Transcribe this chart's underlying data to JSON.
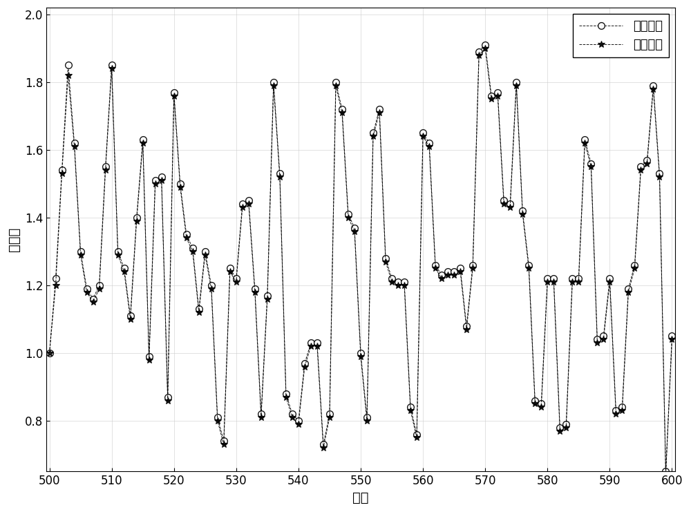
{
  "x_label": "比特",
  "y_label": "信号値",
  "ylim": [
    0.65,
    2.02
  ],
  "xlim": [
    499.5,
    600.5
  ],
  "yticks": [
    0.8,
    1.0,
    1.2,
    1.4,
    1.6,
    1.8,
    2.0
  ],
  "xticks": [
    500,
    510,
    520,
    530,
    540,
    550,
    560,
    570,
    580,
    590,
    600
  ],
  "legend_labels": [
    "真实信号",
    "跟踪信号"
  ],
  "background_color": "#ffffff",
  "figsize": [
    10.0,
    7.41
  ],
  "dpi": 100,
  "true_signal": [
    1.0,
    1.22,
    1.54,
    1.85,
    1.62,
    1.3,
    1.19,
    1.16,
    1.2,
    1.55,
    1.85,
    1.3,
    1.25,
    1.11,
    1.4,
    1.63,
    0.99,
    1.51,
    1.52,
    0.87,
    1.77,
    1.5,
    1.35,
    1.31,
    1.13,
    1.3,
    1.2,
    0.81,
    0.74,
    1.25,
    1.22,
    1.44,
    1.45,
    1.19,
    0.82,
    1.17,
    1.8,
    1.53,
    0.88,
    0.82,
    0.8,
    0.97,
    1.03,
    1.03,
    0.73,
    0.82,
    1.8,
    1.72,
    1.41,
    1.37,
    1.0,
    0.81,
    1.65,
    1.72,
    1.28,
    1.22,
    1.21,
    1.21,
    0.84,
    0.76,
    1.65,
    1.62,
    1.26,
    1.23,
    1.24,
    1.24,
    1.25,
    1.08,
    1.26,
    1.89,
    1.91,
    1.76,
    1.77,
    1.45,
    1.44,
    1.8,
    1.42,
    1.26,
    0.86,
    0.85,
    1.22,
    1.22,
    0.78,
    0.79,
    1.22,
    1.22,
    1.63,
    1.56,
    1.04,
    1.05,
    1.22,
    0.83,
    0.84,
    1.19,
    1.26,
    1.55,
    1.57,
    1.79,
    1.53,
    0.65,
    1.05
  ],
  "track_signal": [
    1.0,
    1.2,
    1.53,
    1.82,
    1.61,
    1.29,
    1.18,
    1.15,
    1.19,
    1.54,
    1.84,
    1.29,
    1.24,
    1.1,
    1.39,
    1.62,
    0.98,
    1.5,
    1.51,
    0.86,
    1.76,
    1.49,
    1.34,
    1.3,
    1.12,
    1.29,
    1.19,
    0.8,
    0.73,
    1.24,
    1.21,
    1.43,
    1.44,
    1.18,
    0.81,
    1.16,
    1.79,
    1.52,
    0.87,
    0.81,
    0.79,
    0.96,
    1.02,
    1.02,
    0.72,
    0.81,
    1.79,
    1.71,
    1.4,
    1.36,
    0.99,
    0.8,
    1.64,
    1.71,
    1.27,
    1.21,
    1.2,
    1.2,
    0.83,
    0.75,
    1.64,
    1.61,
    1.25,
    1.22,
    1.23,
    1.23,
    1.24,
    1.07,
    1.25,
    1.88,
    1.9,
    1.75,
    1.76,
    1.44,
    1.43,
    1.79,
    1.41,
    1.25,
    0.85,
    0.84,
    1.21,
    1.21,
    0.77,
    0.78,
    1.21,
    1.21,
    1.62,
    1.55,
    1.03,
    1.04,
    1.21,
    0.82,
    0.83,
    1.18,
    1.25,
    1.54,
    1.56,
    1.78,
    1.52,
    0.64,
    1.04
  ]
}
